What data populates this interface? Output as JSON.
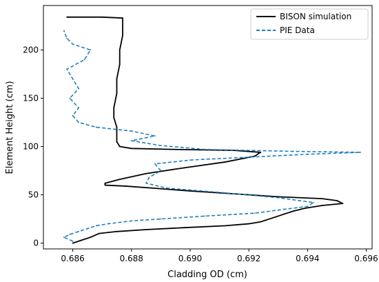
{
  "chart_data": {
    "type": "line",
    "title": "",
    "xlabel": "Cladding OD (cm)",
    "ylabel": "Element Height (cm)",
    "xlim": [
      0.685,
      0.6962
    ],
    "ylim": [
      -6,
      246
    ],
    "x_ticks": [
      0.686,
      0.688,
      0.69,
      0.692,
      0.694,
      0.696
    ],
    "x_tick_labels": [
      "0.686",
      "0.688",
      "0.690",
      "0.692",
      "0.694",
      "0.696"
    ],
    "y_ticks": [
      0,
      50,
      100,
      150,
      200
    ],
    "y_tick_labels": [
      "0",
      "50",
      "100",
      "150",
      "200"
    ],
    "grid": false,
    "legend": "top-right",
    "series": [
      {
        "name": "BISON simulation",
        "style": "solid",
        "color": "#000000",
        "points": [
          [
            0.686,
            0
          ],
          [
            0.6863,
            3
          ],
          [
            0.6866,
            6
          ],
          [
            0.6869,
            10
          ],
          [
            0.6875,
            12
          ],
          [
            0.6885,
            14
          ],
          [
            0.6898,
            16
          ],
          [
            0.6912,
            18
          ],
          [
            0.692,
            20
          ],
          [
            0.6924,
            22
          ],
          [
            0.6928,
            26
          ],
          [
            0.6932,
            30
          ],
          [
            0.6935,
            33
          ],
          [
            0.6939,
            36
          ],
          [
            0.6945,
            39
          ],
          [
            0.6952,
            41
          ],
          [
            0.695,
            44
          ],
          [
            0.6945,
            46
          ],
          [
            0.693,
            48
          ],
          [
            0.6915,
            51
          ],
          [
            0.69,
            54
          ],
          [
            0.6887,
            57
          ],
          [
            0.6878,
            59
          ],
          [
            0.6871,
            60
          ],
          [
            0.6871,
            62
          ],
          [
            0.6876,
            66
          ],
          [
            0.6885,
            72
          ],
          [
            0.6898,
            78
          ],
          [
            0.6912,
            84
          ],
          [
            0.6922,
            90
          ],
          [
            0.6924,
            94
          ],
          [
            0.6915,
            96
          ],
          [
            0.6895,
            97
          ],
          [
            0.688,
            98
          ],
          [
            0.6876,
            100
          ],
          [
            0.6875,
            105
          ],
          [
            0.6875,
            120
          ],
          [
            0.6874,
            130
          ],
          [
            0.6874,
            140
          ],
          [
            0.6875,
            155
          ],
          [
            0.6875,
            170
          ],
          [
            0.6876,
            185
          ],
          [
            0.6876,
            200
          ],
          [
            0.6877,
            215
          ],
          [
            0.6877,
            233
          ],
          [
            0.687,
            234
          ],
          [
            0.6858,
            234
          ]
        ]
      },
      {
        "name": "PIE Data",
        "style": "dashed",
        "color": "#1f7fb8",
        "points": [
          [
            0.686,
            2
          ],
          [
            0.6857,
            6
          ],
          [
            0.6859,
            9
          ],
          [
            0.6862,
            12
          ],
          [
            0.6865,
            15
          ],
          [
            0.6868,
            18
          ],
          [
            0.6872,
            20
          ],
          [
            0.688,
            23
          ],
          [
            0.689,
            25
          ],
          [
            0.6905,
            28
          ],
          [
            0.6922,
            31
          ],
          [
            0.6932,
            35
          ],
          [
            0.694,
            38
          ],
          [
            0.6942,
            42
          ],
          [
            0.693,
            47
          ],
          [
            0.6912,
            52
          ],
          [
            0.6892,
            57
          ],
          [
            0.6885,
            62
          ],
          [
            0.6886,
            68
          ],
          [
            0.689,
            75
          ],
          [
            0.6888,
            82
          ],
          [
            0.69,
            86
          ],
          [
            0.692,
            89
          ],
          [
            0.694,
            92
          ],
          [
            0.6958,
            94
          ],
          [
            0.6935,
            95
          ],
          [
            0.6905,
            97
          ],
          [
            0.689,
            101
          ],
          [
            0.688,
            106
          ],
          [
            0.6888,
            111
          ],
          [
            0.688,
            116
          ],
          [
            0.6868,
            120
          ],
          [
            0.6862,
            125
          ],
          [
            0.686,
            132
          ],
          [
            0.6862,
            140
          ],
          [
            0.6859,
            150
          ],
          [
            0.6862,
            160
          ],
          [
            0.686,
            170
          ],
          [
            0.6858,
            180
          ],
          [
            0.6864,
            190
          ],
          [
            0.6866,
            200
          ],
          [
            0.686,
            206
          ],
          [
            0.6858,
            212
          ],
          [
            0.6857,
            220
          ]
        ]
      }
    ]
  }
}
